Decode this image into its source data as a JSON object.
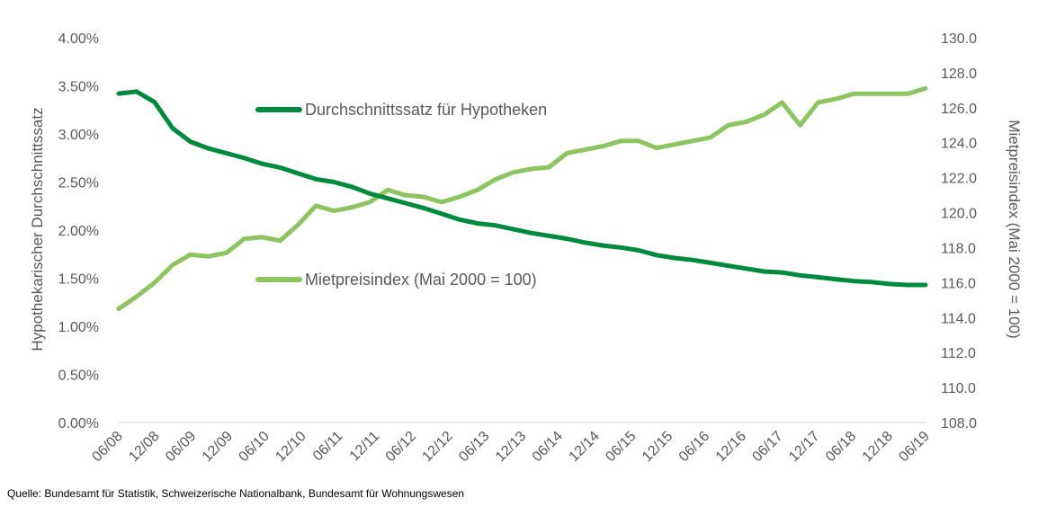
{
  "source_text": "Quelle: Bundesamt für Statistik, Schweizerische Nationalbank, Bundesamt für Wohnungswesen",
  "colors": {
    "dark_green": "#008a3c",
    "light_green": "#8cc460",
    "axis": "#d9d9d9",
    "text": "#595959"
  },
  "chart_data": {
    "type": "line",
    "y_left_label": "Hypothekarischer Durchschnittssatz",
    "y_right_label": "Mietpreisindex (Mai 2000 = 100)",
    "y_left_ticks": [
      "0.00%",
      "0.50%",
      "1.00%",
      "1.50%",
      "2.00%",
      "2.50%",
      "3.00%",
      "3.50%",
      "4.00%"
    ],
    "y_left_range": [
      0,
      4
    ],
    "y_right_ticks": [
      "108.0",
      "110.0",
      "112.0",
      "114.0",
      "116.0",
      "118.0",
      "120.0",
      "122.0",
      "124.0",
      "126.0",
      "128.0",
      "130.0"
    ],
    "y_right_range": [
      108,
      130
    ],
    "x_tick_labels": [
      "06/08",
      "12/08",
      "06/09",
      "12/09",
      "06/10",
      "12/10",
      "06/11",
      "12/11",
      "06/12",
      "12/12",
      "06/13",
      "12/13",
      "06/14",
      "12/14",
      "06/15",
      "12/15",
      "06/16",
      "12/16",
      "06/17",
      "12/17",
      "06/18",
      "12/18",
      "06/19"
    ],
    "grid": false,
    "series": [
      {
        "name": "Durchschnittssatz für Hypotheken",
        "axis": "left",
        "color": "#008a3c",
        "values": [
          3.42,
          3.44,
          3.33,
          3.06,
          2.92,
          2.85,
          2.8,
          2.75,
          2.69,
          2.65,
          2.59,
          2.53,
          2.5,
          2.45,
          2.38,
          2.33,
          2.28,
          2.23,
          2.17,
          2.11,
          2.07,
          2.05,
          2.01,
          1.97,
          1.94,
          1.91,
          1.87,
          1.84,
          1.82,
          1.79,
          1.74,
          1.71,
          1.69,
          1.66,
          1.63,
          1.6,
          1.57,
          1.56,
          1.53,
          1.51,
          1.49,
          1.47,
          1.46,
          1.44,
          1.43,
          1.43
        ]
      },
      {
        "name": "Mietpreisindex (Mai 2000 = 100)",
        "axis": "right",
        "color": "#8cc460",
        "values": [
          114.5,
          115.2,
          116.0,
          117.0,
          117.6,
          117.5,
          117.7,
          118.5,
          118.6,
          118.4,
          119.3,
          120.4,
          120.1,
          120.3,
          120.6,
          121.3,
          121.0,
          120.9,
          120.6,
          120.9,
          121.3,
          121.9,
          122.3,
          122.5,
          122.6,
          123.4,
          123.6,
          123.8,
          124.1,
          124.1,
          123.7,
          123.9,
          124.1,
          124.3,
          125.0,
          125.2,
          125.6,
          126.3,
          125.0,
          126.3,
          126.5,
          126.8,
          126.8,
          126.8,
          126.8,
          127.1
        ]
      }
    ]
  }
}
